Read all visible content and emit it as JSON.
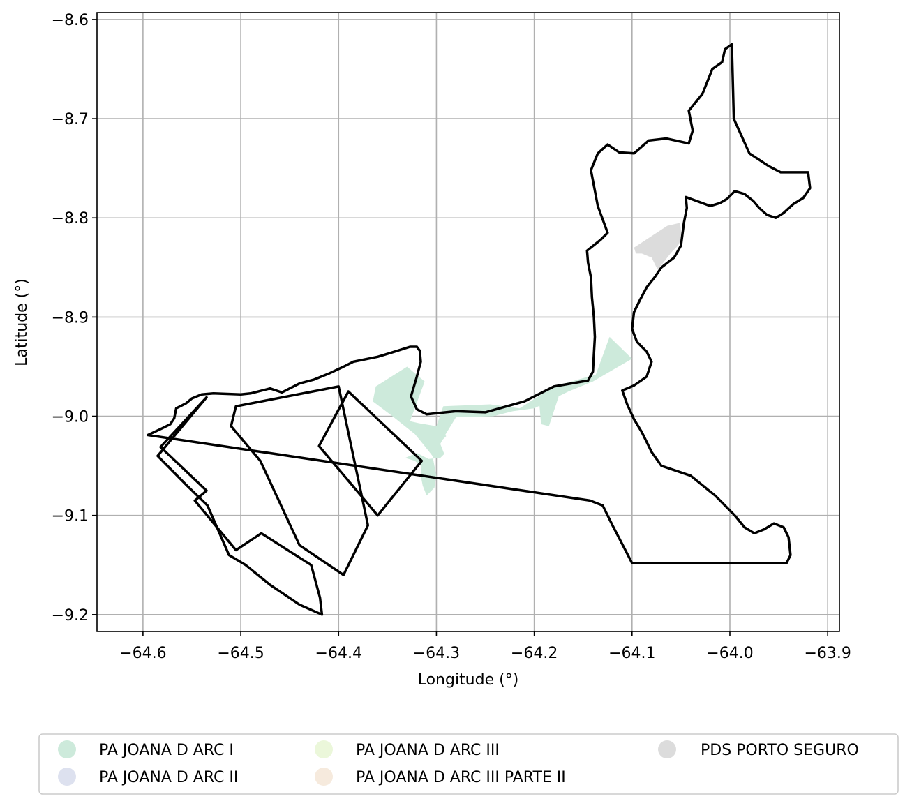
{
  "chart_data": {
    "type": "map",
    "xlabel": "Longitude (°)",
    "ylabel": "Latitude (°)",
    "xlim": [
      -64.647,
      -63.888
    ],
    "ylim": [
      -9.217,
      -8.593
    ],
    "grid": true,
    "xticks": [
      -64.6,
      -64.5,
      -64.4,
      -64.3,
      -64.2,
      -64.1,
      -64.0,
      -63.9
    ],
    "yticks": [
      -8.6,
      -8.7,
      -8.8,
      -8.9,
      -9.0,
      -9.1,
      -9.2
    ],
    "xtick_labels": [
      "−64.6",
      "−64.5",
      "−64.4",
      "−64.3",
      "−64.2",
      "−64.1",
      "−64.0",
      "−63.9"
    ],
    "ytick_labels": [
      "−8.6",
      "−8.7",
      "−8.8",
      "−8.9",
      "−9.0",
      "−9.1",
      "−9.2"
    ],
    "legend": {
      "placement": "below",
      "columns": 3,
      "entries": [
        {
          "label": "PA JOANA D ARC I",
          "color": "#cdeadb"
        },
        {
          "label": "PA JOANA D ARC II",
          "color": "#dde1ef"
        },
        {
          "label": "PA JOANA D ARC III",
          "color": "#ebf7da"
        },
        {
          "label": "PA JOANA D ARC III PARTE II",
          "color": "#f6eadd"
        },
        {
          "label": "PDS PORTO SEGURO",
          "color": "#dcdcdc"
        }
      ]
    },
    "filled_areas": [
      {
        "label": "PA JOANA D ARC I",
        "color": "#cdeadb",
        "polygons": [
          [
            [
              -64.362,
              -8.97
            ],
            [
              -64.33,
              -8.95
            ],
            [
              -64.312,
              -8.965
            ],
            [
              -64.327,
              -9.005
            ],
            [
              -64.318,
              -9.007
            ],
            [
              -64.3,
              -9.01
            ],
            [
              -64.293,
              -8.99
            ],
            [
              -64.245,
              -8.988
            ],
            [
              -64.215,
              -8.992
            ],
            [
              -64.18,
              -8.97
            ],
            [
              -64.137,
              -8.958
            ],
            [
              -64.123,
              -8.92
            ],
            [
              -64.1,
              -8.942
            ],
            [
              -64.14,
              -8.965
            ],
            [
              -64.165,
              -8.975
            ],
            [
              -64.2,
              -8.992
            ],
            [
              -64.222,
              -8.995
            ],
            [
              -64.242,
              -9.0
            ],
            [
              -64.28,
              -9.001
            ],
            [
              -64.293,
              -9.022
            ],
            [
              -64.296,
              -9.028
            ],
            [
              -64.292,
              -9.038
            ],
            [
              -64.296,
              -9.042
            ],
            [
              -64.308,
              -9.043
            ],
            [
              -64.32,
              -9.037
            ],
            [
              -64.332,
              -9.042
            ],
            [
              -64.322,
              -9.045
            ],
            [
              -64.316,
              -9.05
            ],
            [
              -64.316,
              -9.06
            ],
            [
              -64.314,
              -9.07
            ],
            [
              -64.31,
              -9.08
            ],
            [
              -64.302,
              -9.072
            ],
            [
              -64.3,
              -9.06
            ],
            [
              -64.304,
              -9.04
            ],
            [
              -64.312,
              -9.03
            ],
            [
              -64.322,
              -9.018
            ],
            [
              -64.345,
              -9.0
            ],
            [
              -64.365,
              -8.985
            ]
          ],
          [
            [
              -64.195,
              -8.985
            ],
            [
              -64.175,
              -8.98
            ],
            [
              -64.185,
              -9.01
            ],
            [
              -64.193,
              -9.008
            ]
          ],
          [
            [
              -64.305,
              -9.025
            ],
            [
              -64.3,
              -9.03
            ],
            [
              -64.29,
              -9.02
            ],
            [
              -64.295,
              -9.015
            ]
          ]
        ]
      },
      {
        "label": "PDS PORTO SEGURO",
        "color": "#dcdcdc",
        "polygons": [
          [
            [
              -64.098,
              -8.83
            ],
            [
              -64.064,
              -8.808
            ],
            [
              -64.051,
              -8.805
            ],
            [
              -64.049,
              -8.82
            ],
            [
              -64.053,
              -8.828
            ],
            [
              -64.06,
              -8.835
            ],
            [
              -64.068,
              -8.845
            ],
            [
              -64.074,
              -8.852
            ],
            [
              -64.08,
              -8.84
            ],
            [
              -64.09,
              -8.836
            ],
            [
              -64.096,
              -8.836
            ]
          ]
        ]
      }
    ],
    "outlines": [
      {
        "color": "#000000",
        "polygons": [
          [
            [
              -64.595,
              -9.019
            ],
            [
              -64.58,
              -9.012
            ],
            [
              -64.572,
              -9.008
            ],
            [
              -64.568,
              -9.002
            ],
            [
              -64.566,
              -8.992
            ],
            [
              -64.562,
              -8.99
            ],
            [
              -64.556,
              -8.987
            ],
            [
              -64.55,
              -8.982
            ],
            [
              -64.54,
              -8.978
            ],
            [
              -64.528,
              -8.977
            ],
            [
              -64.5,
              -8.978
            ],
            [
              -64.49,
              -8.977
            ],
            [
              -64.47,
              -8.972
            ],
            [
              -64.458,
              -8.976
            ],
            [
              -64.44,
              -8.967
            ],
            [
              -64.425,
              -8.963
            ],
            [
              -64.41,
              -8.957
            ],
            [
              -64.395,
              -8.95
            ],
            [
              -64.385,
              -8.945
            ],
            [
              -64.36,
              -8.94
            ],
            [
              -64.343,
              -8.935
            ],
            [
              -64.327,
              -8.93
            ],
            [
              -64.32,
              -8.93
            ],
            [
              -64.317,
              -8.934
            ],
            [
              -64.316,
              -8.945
            ],
            [
              -64.32,
              -8.96
            ],
            [
              -64.326,
              -8.98
            ],
            [
              -64.32,
              -8.993
            ],
            [
              -64.31,
              -8.998
            ],
            [
              -64.28,
              -8.995
            ],
            [
              -64.25,
              -8.996
            ],
            [
              -64.21,
              -8.985
            ],
            [
              -64.18,
              -8.97
            ],
            [
              -64.145,
              -8.964
            ],
            [
              -64.14,
              -8.955
            ],
            [
              -64.138,
              -8.92
            ],
            [
              -64.139,
              -8.9
            ],
            [
              -64.141,
              -8.88
            ],
            [
              -64.142,
              -8.86
            ],
            [
              -64.145,
              -8.845
            ],
            [
              -64.146,
              -8.833
            ],
            [
              -64.132,
              -8.822
            ],
            [
              -64.125,
              -8.815
            ],
            [
              -64.135,
              -8.788
            ],
            [
              -64.142,
              -8.752
            ],
            [
              -64.135,
              -8.735
            ],
            [
              -64.125,
              -8.726
            ],
            [
              -64.113,
              -8.734
            ],
            [
              -64.098,
              -8.735
            ],
            [
              -64.083,
              -8.722
            ],
            [
              -64.065,
              -8.72
            ],
            [
              -64.042,
              -8.725
            ],
            [
              -64.038,
              -8.712
            ],
            [
              -64.042,
              -8.692
            ],
            [
              -64.028,
              -8.675
            ],
            [
              -64.022,
              -8.66
            ],
            [
              -64.018,
              -8.65
            ],
            [
              -64.008,
              -8.643
            ],
            [
              -64.005,
              -8.63
            ],
            [
              -63.998,
              -8.625
            ],
            [
              -63.996,
              -8.7
            ],
            [
              -63.98,
              -8.735
            ],
            [
              -63.96,
              -8.748
            ],
            [
              -63.948,
              -8.754
            ],
            [
              -63.92,
              -8.754
            ],
            [
              -63.918,
              -8.77
            ],
            [
              -63.925,
              -8.78
            ],
            [
              -63.935,
              -8.786
            ],
            [
              -63.945,
              -8.795
            ],
            [
              -63.953,
              -8.8
            ],
            [
              -63.962,
              -8.797
            ],
            [
              -63.97,
              -8.79
            ],
            [
              -63.976,
              -8.783
            ],
            [
              -63.985,
              -8.776
            ],
            [
              -63.995,
              -8.773
            ],
            [
              -64.003,
              -8.781
            ],
            [
              -64.01,
              -8.785
            ],
            [
              -64.02,
              -8.788
            ],
            [
              -64.045,
              -8.779
            ],
            [
              -64.044,
              -8.79
            ],
            [
              -64.047,
              -8.805
            ],
            [
              -64.05,
              -8.828
            ],
            [
              -64.057,
              -8.84
            ],
            [
              -64.07,
              -8.85
            ],
            [
              -64.077,
              -8.86
            ],
            [
              -64.085,
              -8.87
            ],
            [
              -64.092,
              -8.883
            ],
            [
              -64.098,
              -8.895
            ],
            [
              -64.1,
              -8.912
            ],
            [
              -64.095,
              -8.925
            ],
            [
              -64.085,
              -8.935
            ],
            [
              -64.08,
              -8.945
            ],
            [
              -64.085,
              -8.96
            ],
            [
              -64.098,
              -8.969
            ],
            [
              -64.11,
              -8.974
            ],
            [
              -64.105,
              -8.988
            ],
            [
              -64.098,
              -9.003
            ],
            [
              -64.09,
              -9.016
            ],
            [
              -64.08,
              -9.036
            ],
            [
              -64.07,
              -9.05
            ],
            [
              -64.055,
              -9.055
            ],
            [
              -64.04,
              -9.06
            ],
            [
              -64.025,
              -9.072
            ],
            [
              -64.015,
              -9.08
            ],
            [
              -64.005,
              -9.09
            ],
            [
              -63.995,
              -9.1
            ],
            [
              -63.985,
              -9.112
            ],
            [
              -63.975,
              -9.118
            ],
            [
              -63.965,
              -9.114
            ],
            [
              -63.955,
              -9.108
            ],
            [
              -63.945,
              -9.112
            ],
            [
              -63.94,
              -9.122
            ],
            [
              -63.938,
              -9.14
            ],
            [
              -63.942,
              -9.148
            ],
            [
              -64.1,
              -9.148
            ],
            [
              -64.12,
              -9.11
            ],
            [
              -64.13,
              -9.09
            ],
            [
              -64.143,
              -9.085
            ]
          ]
        ]
      }
    ]
  }
}
